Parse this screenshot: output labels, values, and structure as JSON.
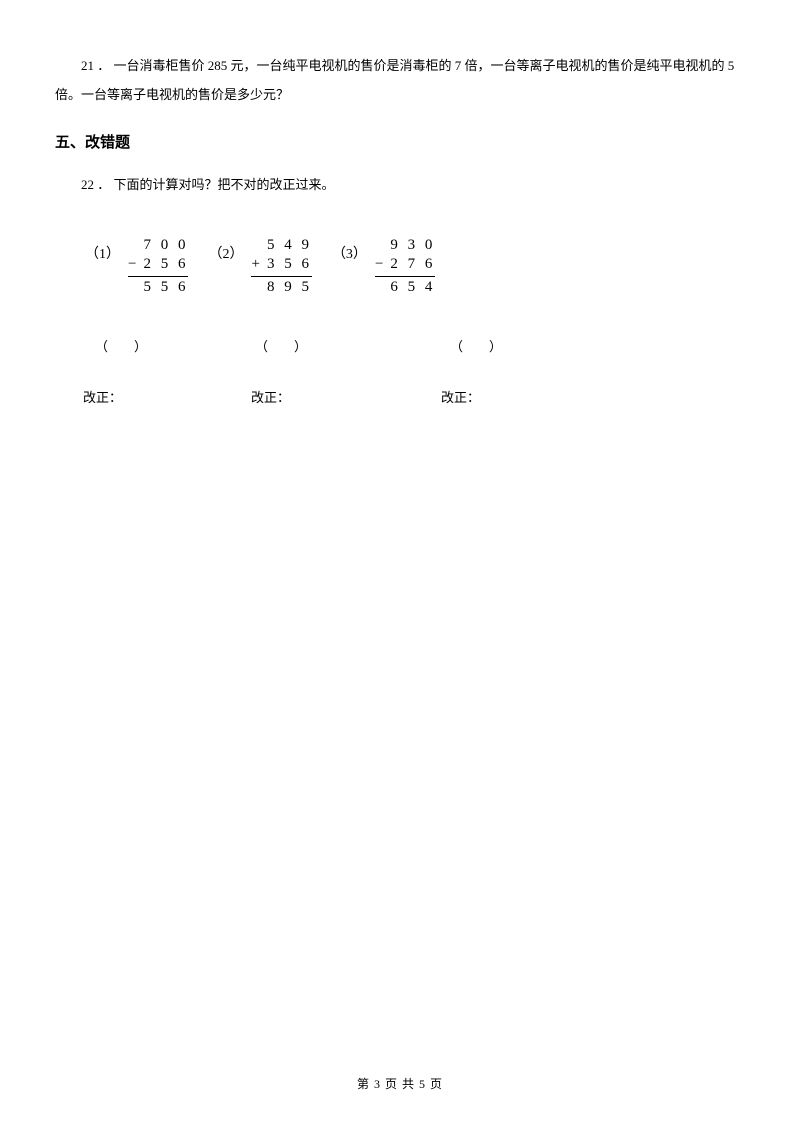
{
  "question21": {
    "number": "21 ．",
    "text": "一台消毒柜售价 285 元，一台纯平电视机的售价是消毒柜的 7 倍，一台等离子电视机的售价是纯平电视机的 5 倍。一台等离子电视机的售价是多少元？"
  },
  "section5": {
    "title": "五、改错题"
  },
  "question22": {
    "number": "22 ．",
    "text": "下面的计算对吗？把不对的改正过来。"
  },
  "problems": [
    {
      "label": "（1）",
      "line1": "7 0 0",
      "line2_op": "−",
      "line2": "2 5 6",
      "result": "5 5 6"
    },
    {
      "label": "（2）",
      "line1": "5 4 9",
      "line2_op": "+",
      "line2": "3 5 6",
      "result": "8 9 5"
    },
    {
      "label": "（3）",
      "line1": "9 3 0",
      "line2_op": "−",
      "line2": "2 7 6",
      "result": "6 5 4"
    }
  ],
  "parentheses": {
    "item": "（　　）"
  },
  "correction": {
    "label": "改正："
  },
  "footer": {
    "text": "第 3 页 共 5 页"
  }
}
